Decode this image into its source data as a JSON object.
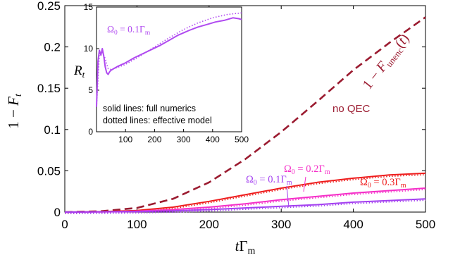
{
  "chart_data": [
    {
      "type": "line",
      "xlabel": "tΓm",
      "ylabel": "1 − Ft",
      "xlim": [
        0,
        500
      ],
      "ylim": [
        0,
        0.25
      ],
      "xticks": [
        "0",
        "100",
        "200",
        "300",
        "400",
        "500"
      ],
      "yticks": [
        "0",
        "0.05",
        "0.1",
        "0.15",
        "0.2",
        "0.25"
      ],
      "grid": false,
      "x": [
        0,
        50,
        100,
        150,
        200,
        250,
        300,
        350,
        400,
        450,
        500
      ],
      "series": [
        {
          "name": "1 − Funenc(t)",
          "note": "no QEC",
          "color": "#9b1b30",
          "style": "dashed",
          "values": [
            0,
            0.001,
            0.005,
            0.016,
            0.036,
            0.064,
            0.097,
            0.134,
            0.172,
            0.205,
            0.236
          ]
        },
        {
          "name": "Ω0 = 0.3Γm",
          "color": "#ee1c1c",
          "style": "solid",
          "values": [
            0,
            0.0005,
            0.002,
            0.006,
            0.013,
            0.021,
            0.029,
            0.036,
            0.041,
            0.045,
            0.047
          ]
        },
        {
          "name": "Ω0 = 0.2Γm",
          "color": "#f52fc8",
          "style": "solid",
          "values": [
            0,
            0.0003,
            0.0012,
            0.003,
            0.006,
            0.01,
            0.015,
            0.019,
            0.023,
            0.026,
            0.029
          ]
        },
        {
          "name": "Ω0 = 0.1Γm",
          "color": "#a33ff0",
          "style": "solid",
          "values": [
            0,
            0.0002,
            0.0007,
            0.0015,
            0.003,
            0.005,
            0.007,
            0.009,
            0.012,
            0.014,
            0.016
          ]
        }
      ]
    },
    {
      "type": "line",
      "ylabel": "Rt",
      "xlim": [
        0,
        500
      ],
      "ylim": [
        0,
        15
      ],
      "xticks": [
        "100",
        "200",
        "300",
        "400",
        "500"
      ],
      "yticks": [
        "0",
        "5",
        "10",
        "15"
      ],
      "series": [
        {
          "name": "Ω0 = 0.1Γm",
          "style": "solid",
          "color": "#b04af0",
          "x": [
            0,
            5,
            10,
            15,
            20,
            25,
            30,
            35,
            40,
            45,
            50,
            60,
            75,
            100,
            130,
            160,
            190,
            220,
            250,
            280,
            300,
            320,
            350,
            380,
            410,
            440,
            470,
            490,
            500
          ],
          "values": [
            3.0,
            8.5,
            9.8,
            9.2,
            10.0,
            9.1,
            7.8,
            7.1,
            6.9,
            7.2,
            7.4,
            7.6,
            7.9,
            8.3,
            8.9,
            9.4,
            9.9,
            10.4,
            11.0,
            11.6,
            11.9,
            12.2,
            12.6,
            12.9,
            13.2,
            13.4,
            13.7,
            13.6,
            13.5
          ]
        },
        {
          "name": "effective model",
          "style": "dotted",
          "color": "#b04af0",
          "x": [
            0,
            10,
            20,
            30,
            40,
            50,
            70,
            100,
            150,
            200,
            250,
            300,
            350,
            400,
            450,
            500
          ],
          "values": [
            3.0,
            9.3,
            9.6,
            8.8,
            7.6,
            7.5,
            7.7,
            8.1,
            9.1,
            10.2,
            11.3,
            12.3,
            13.1,
            13.7,
            14.1,
            14.3
          ]
        }
      ],
      "annotations": [
        "solid lines: full numerics",
        "dotted lines: effective model"
      ]
    }
  ],
  "labels": {
    "main_x_title": "tΓm",
    "main_y_title": "1 − Ft",
    "unenc_label": "1 − Funenc(t)",
    "no_qec": "no QEC",
    "omega03": "Ω0 = 0.3Γm",
    "omega02": "Ω0 = 0.2Γm",
    "omega01": "Ω0 = 0.1Γm",
    "inset_y_title": "Rt",
    "inset_omega": "Ω0 = 0.1Γm",
    "note_solid": "solid lines: full numerics",
    "note_dotted": "dotted lines: effective model"
  },
  "colors": {
    "unenc": "#9b1b30",
    "omega03": "#ee1c1c",
    "omega02": "#f52fc8",
    "omega01": "#a33ff0",
    "inset": "#b04af0"
  }
}
